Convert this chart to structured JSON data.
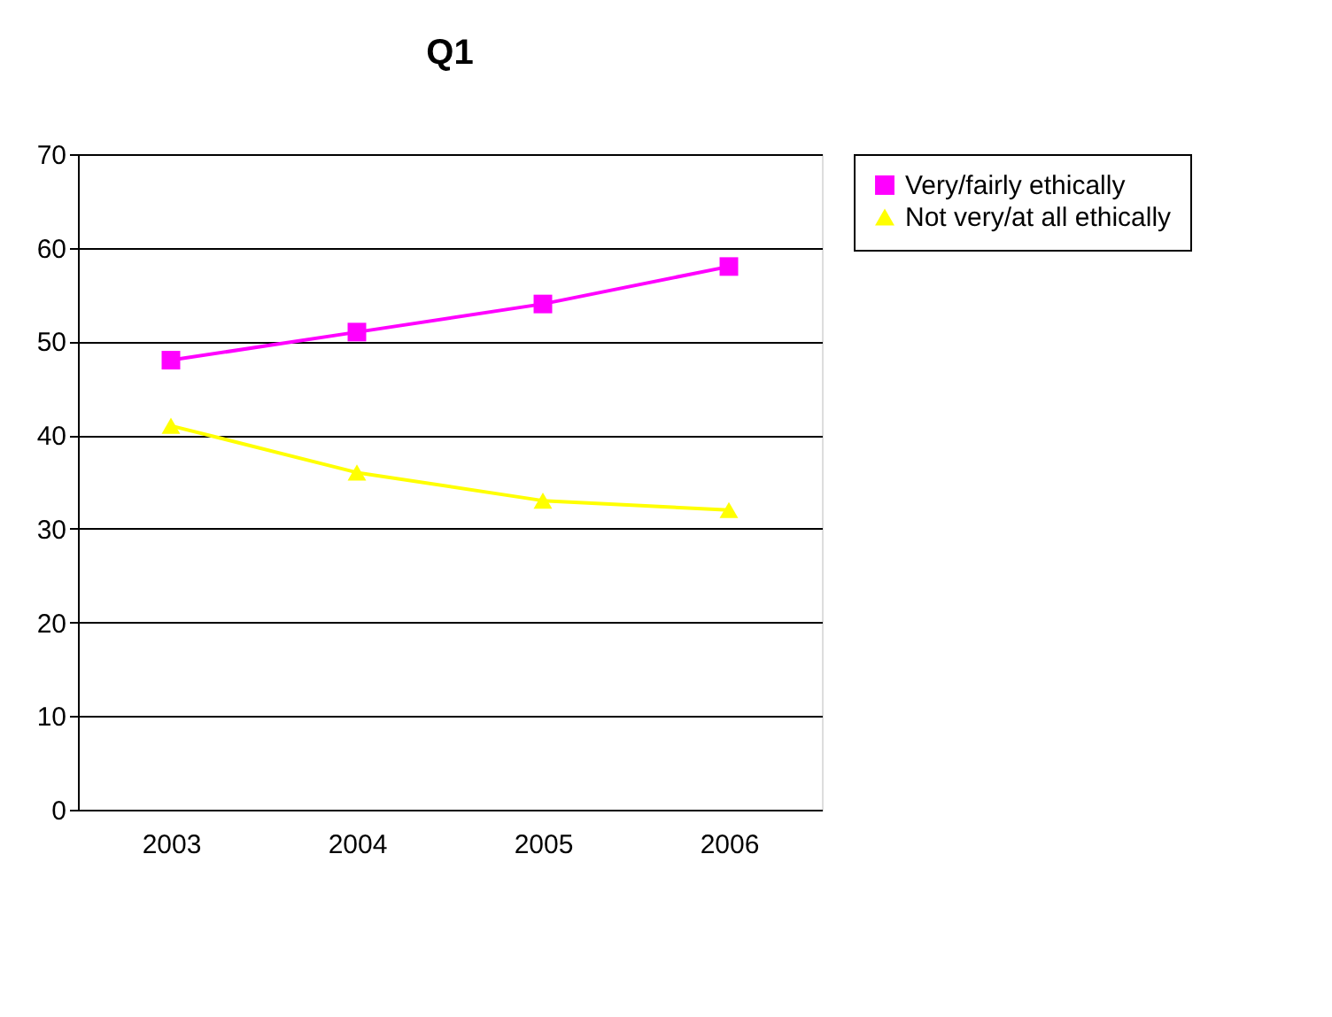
{
  "chart_data": {
    "type": "line",
    "title": "Q1",
    "categories": [
      "2003",
      "2004",
      "2005",
      "2006"
    ],
    "series": [
      {
        "name": "Very/fairly ethically",
        "color": "#ff00ff",
        "marker": "square",
        "values": [
          48,
          51,
          54,
          58
        ]
      },
      {
        "name": "Not very/at all ethically",
        "color": "#ffff00",
        "marker": "triangle",
        "values": [
          41,
          36,
          33,
          32
        ]
      }
    ],
    "ylim": [
      0,
      70
    ],
    "yticks": [
      0,
      10,
      20,
      30,
      40,
      50,
      60,
      70
    ],
    "grid": "y",
    "legend": "right"
  }
}
